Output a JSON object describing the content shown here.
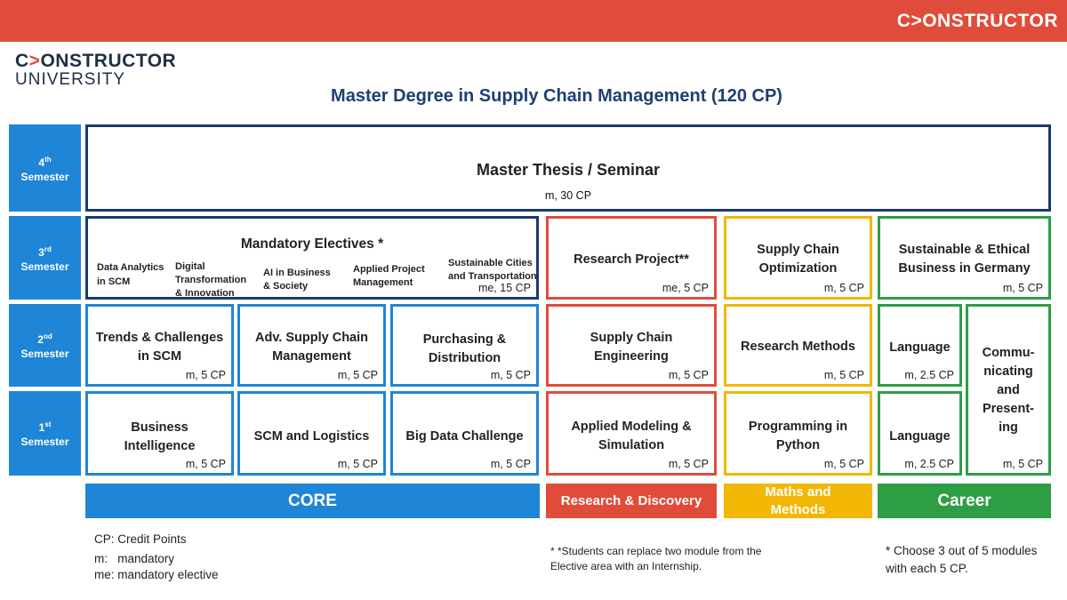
{
  "header": {
    "brand": "C>ONSTRUCTOR",
    "logo_line1_prefix": "C",
    "logo_line1_accent": ">",
    "logo_line1_rest": "ONSTRUCTOR",
    "logo_line2": "UNIVERSITY"
  },
  "title": "Master Degree in Supply Chain Management (120 CP)",
  "semesters": [
    {
      "num": "4",
      "sup": "th",
      "label": "Semester"
    },
    {
      "num": "3",
      "sup": "rd",
      "label": "Semester"
    },
    {
      "num": "2",
      "sup": "nd",
      "label": "Semester"
    },
    {
      "num": "1",
      "sup": "st",
      "label": "Semester"
    }
  ],
  "thesis": {
    "name": "Master Thesis / Seminar",
    "cp": "m, 30 CP"
  },
  "electives": {
    "title": "Mandatory Electives *",
    "items": [
      "Data Analytics in SCM",
      "Digital Transformation & Innovation",
      "AI in Business & Society",
      "Applied Project Management",
      "Sustainable Cities and Transportation"
    ],
    "cp": "me, 15 CP"
  },
  "modules": {
    "research_project": {
      "name": "Research Project**",
      "cp": "me, 5 CP"
    },
    "sc_optimization": {
      "name": "Supply Chain Optimization",
      "cp": "m, 5 CP"
    },
    "sustainable": {
      "name": "Sustainable & Ethical Business in Germany",
      "cp": "m, 5 CP"
    },
    "trends": {
      "name": "Trends & Challenges in SCM",
      "cp": "m, 5 CP"
    },
    "adv_sc": {
      "name": "Adv. Supply Chain Management",
      "cp": "m, 5 CP"
    },
    "purchasing": {
      "name": "Purchasing & Distribution",
      "cp": "m, 5 CP"
    },
    "sc_engineering": {
      "name": "Supply Chain Engineering",
      "cp": "m, 5 CP"
    },
    "research_methods": {
      "name": "Research Methods",
      "cp": "m, 5 CP"
    },
    "language2": {
      "name": "Language",
      "cp": "m, 2.5 CP"
    },
    "communicating": {
      "name": "Commu- nicating and Present- ing",
      "cp": "m, 5 CP"
    },
    "bi": {
      "name": "Business Intelligence",
      "cp": "m, 5 CP"
    },
    "scm_logistics": {
      "name": "SCM and Logistics",
      "cp": "m, 5 CP"
    },
    "big_data": {
      "name": "Big Data Challenge",
      "cp": "m, 5 CP"
    },
    "applied_modeling": {
      "name": "Applied Modeling & Simulation",
      "cp": "m, 5 CP"
    },
    "python": {
      "name": "Programming in Python",
      "cp": "m, 5 CP"
    },
    "language1": {
      "name": "Language",
      "cp": "m, 2.5 CP"
    }
  },
  "bands": {
    "core": "CORE",
    "research": "Research & Discovery",
    "maths": "Maths and Methods",
    "career": "Career"
  },
  "colors": {
    "topbar": "#e04c3a",
    "core_blue": "#1f85d6",
    "navy": "#1a3a6b",
    "research_red": "#e04c3a",
    "maths_yellow": "#f2b705",
    "career_green": "#2e9e45",
    "title_blue": "#1f3f73"
  },
  "notes": {
    "legend": [
      "CP: Credit Points",
      "m:   mandatory",
      "me: mandatory elective"
    ],
    "internship": "* *Students can replace two module from the Elective area with an Internship.",
    "choose": "* Choose 3 out of 5 modules with each 5 CP."
  }
}
